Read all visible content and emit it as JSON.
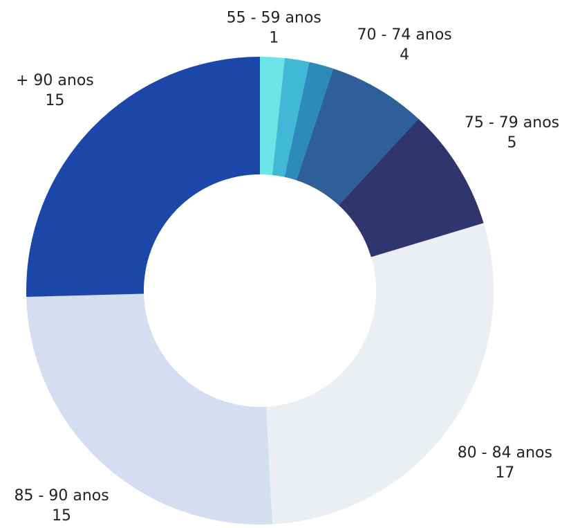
{
  "chart_data": {
    "type": "donut",
    "categories": [
      "55 - 59 anos",
      null,
      null,
      "70 - 74 anos",
      "75 - 79 anos",
      "80 - 84 anos",
      "85 - 90 anos",
      "+ 90 anos"
    ],
    "values": [
      1,
      1,
      1,
      4,
      5,
      17,
      15,
      15
    ],
    "colors": [
      "#6ce5e8",
      "#41b8d5",
      "#2d8bba",
      "#2f5f98",
      "#31356e",
      "#ebeff3",
      "#d5ddf0",
      "#1b48a8"
    ]
  }
}
